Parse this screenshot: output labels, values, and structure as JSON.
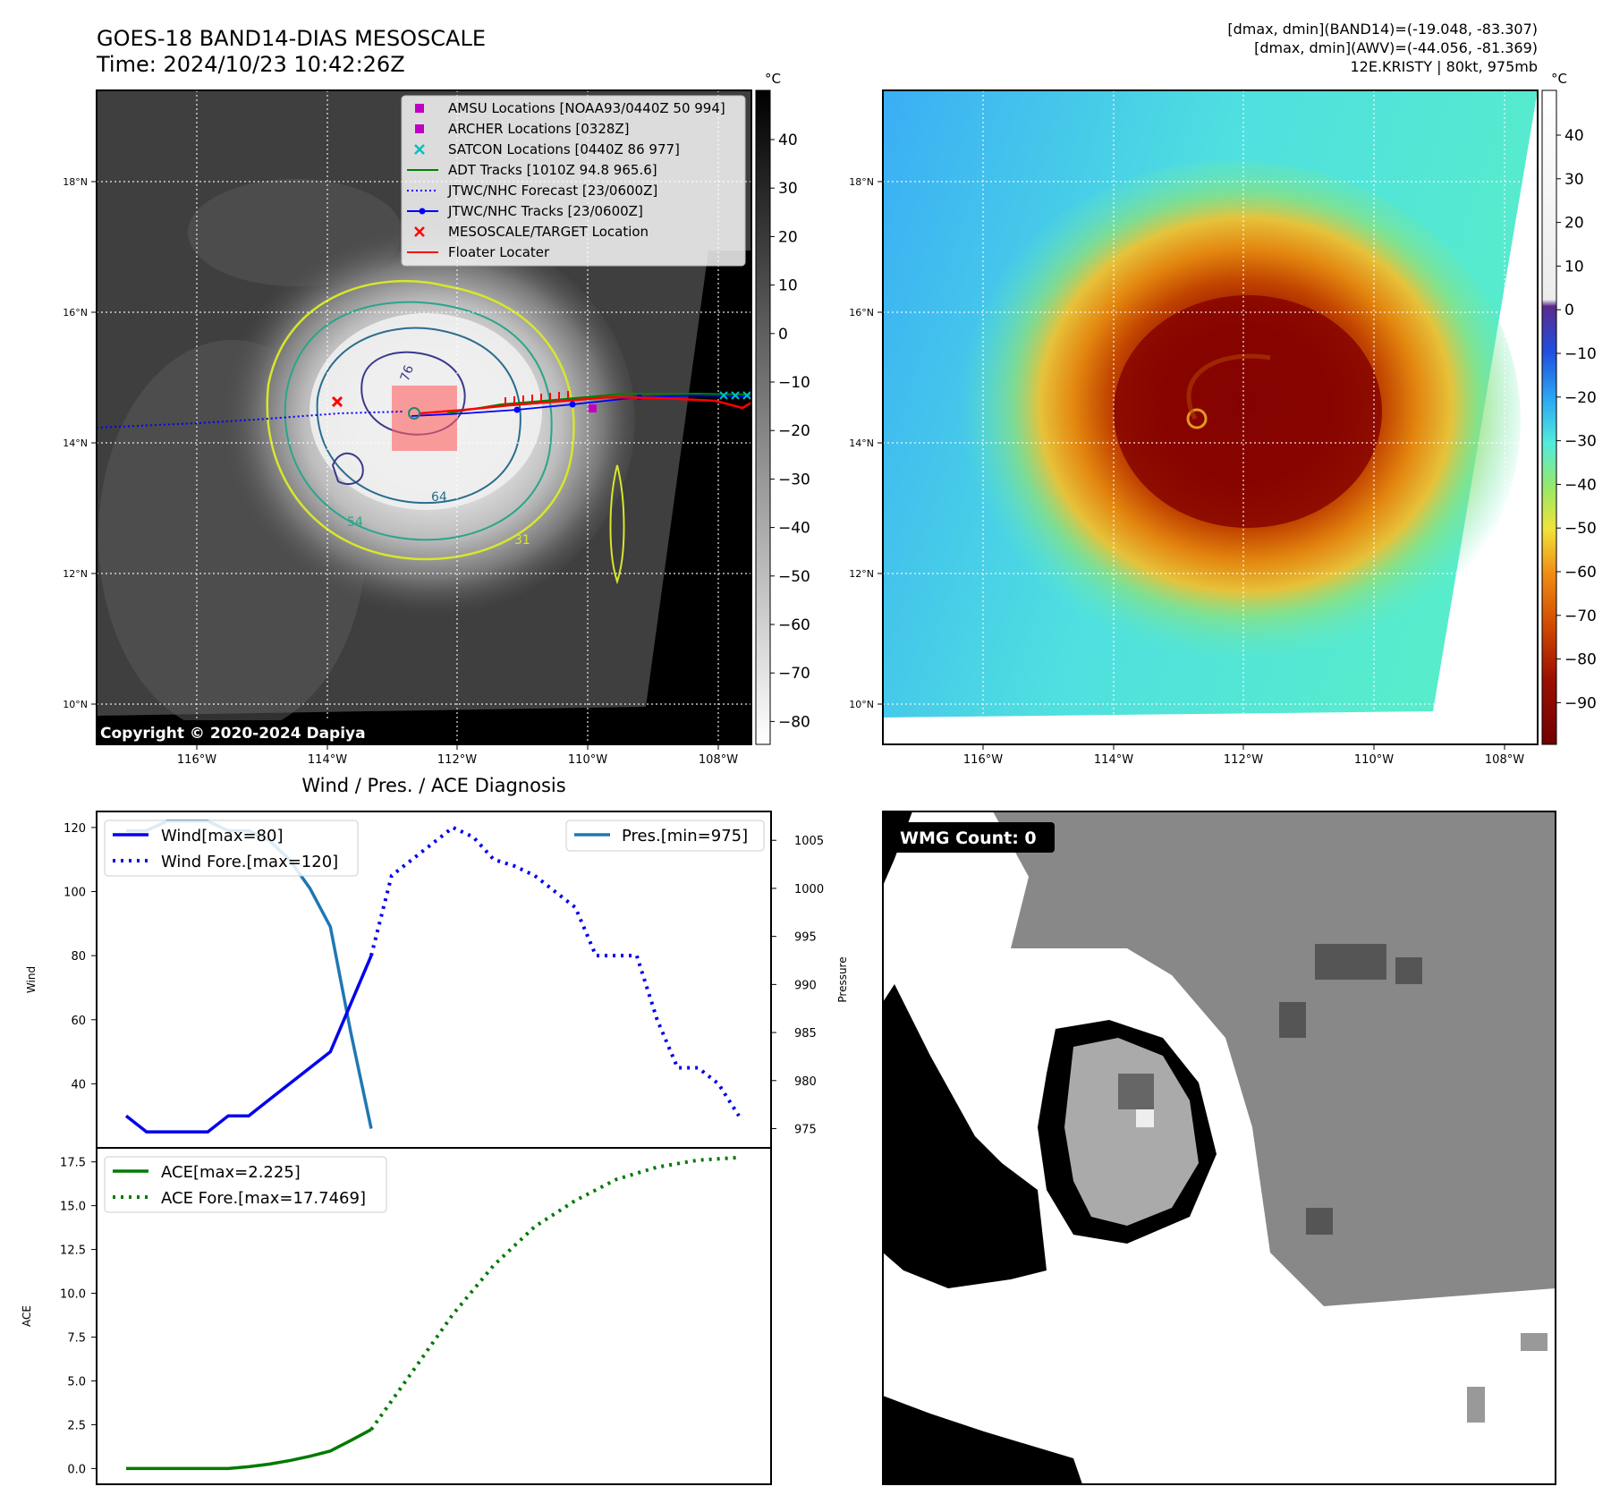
{
  "header": {
    "title_line1": "GOES-18 BAND14-DIAS MESOSCALE",
    "title_line2": "Time: 2024/10/23 10:42:26Z",
    "info_line1": "[dmax, dmin](BAND14)=(-19.048, -83.307)",
    "info_line2": "[dmax, dmin](AWV)=(-44.056, -81.369)",
    "info_line3": "12E.KRISTY | 80kt, 975mb",
    "copyright": "Copyright © 2020-2024 Dapiya"
  },
  "colors": {
    "wind": "#0000ee",
    "pressure": "#1f77b4",
    "ace": "#007a00",
    "amsu": "#c000c0",
    "archer": "#c000c0",
    "satcon": "#00bfbf",
    "adt": "#008000",
    "forecast": "#0000ff",
    "tracks": "#0000ff",
    "meso": "#ff0000",
    "floater": "#ff0000"
  },
  "map": {
    "lon_ticks": [
      "116°W",
      "114°W",
      "112°W",
      "110°W",
      "108°W"
    ],
    "lat_ticks": [
      "18°N",
      "16°N",
      "14°N",
      "12°N",
      "10°N"
    ],
    "cbar_unit": "°C",
    "cbar1_ticks": [
      "40",
      "30",
      "20",
      "10",
      "0",
      "−10",
      "−20",
      "−30",
      "−40",
      "−50",
      "−60",
      "−70",
      "−80"
    ],
    "cbar2_ticks": [
      "40",
      "30",
      "20",
      "10",
      "0",
      "−10",
      "−20",
      "−30",
      "−40",
      "−50",
      "−60",
      "−70",
      "−80",
      "−90"
    ],
    "contour_labels": [
      "76",
      "64",
      "54",
      "31"
    ]
  },
  "legend": [
    {
      "label": "AMSU Locations [NOAA93/0440Z 50 994]",
      "marker": "square",
      "color_key": "amsu"
    },
    {
      "label": "ARCHER Locations [0328Z]",
      "marker": "square",
      "color_key": "archer"
    },
    {
      "label": "SATCON Locations [0440Z 86 977]",
      "marker": "x",
      "color_key": "satcon"
    },
    {
      "label": "ADT Tracks [1010Z 94.8 965.6]",
      "marker": "line",
      "color_key": "adt"
    },
    {
      "label": "JTWC/NHC Forecast [23/0600Z]",
      "marker": "dotted",
      "color_key": "forecast"
    },
    {
      "label": "JTWC/NHC Tracks [23/0600Z]",
      "marker": "line-dot",
      "color_key": "tracks"
    },
    {
      "label": "MESOSCALE/TARGET Location",
      "marker": "x",
      "color_key": "meso"
    },
    {
      "label": "Floater Locater",
      "marker": "line",
      "color_key": "floater"
    }
  ],
  "diag": {
    "title": "Wind / Pres. / ACE Diagnosis",
    "wind_ylabel": "Wind",
    "pres_ylabel": "Pressure",
    "ace_ylabel": "ACE",
    "wind_ticks": [
      "120",
      "100",
      "80",
      "60",
      "40"
    ],
    "pres_ticks": [
      "1005",
      "1000",
      "995",
      "990",
      "985",
      "980",
      "975"
    ],
    "ace_ticks": [
      "17.5",
      "15.0",
      "12.5",
      "10.0",
      "7.5",
      "5.0",
      "2.5",
      "0.0"
    ],
    "legend_wind": "Wind[max=80]",
    "legend_wind_fore": "Wind Fore.[max=120]",
    "legend_pres": "Pres.[min=975]",
    "legend_ace": "ACE[max=2.225]",
    "legend_ace_fore": "ACE Fore.[max=17.7469]"
  },
  "wmg": {
    "label": "WMG Count: 0"
  },
  "chart_data": [
    {
      "type": "line",
      "title": "Wind / Pres. / ACE Diagnosis",
      "x": [
        0,
        1,
        2,
        3,
        4,
        5,
        6,
        7,
        8,
        9,
        10,
        11,
        12
      ],
      "series": [
        {
          "name": "Wind[max=80]",
          "axis": "wind",
          "values": [
            30,
            25,
            25,
            25,
            25,
            30,
            30,
            35,
            40,
            45,
            50,
            65,
            80
          ]
        },
        {
          "name": "Pres.[min=975]",
          "axis": "pressure",
          "values": [
            1006,
            1006,
            1007,
            1007,
            1007,
            1006,
            1006,
            1005,
            1003,
            1000,
            996,
            985,
            975
          ]
        }
      ],
      "forecast": {
        "name": "Wind Fore.[max=120]",
        "x": [
          12,
          13,
          14,
          15,
          16,
          17,
          18,
          19,
          20,
          21,
          22,
          23,
          24,
          25,
          26,
          27,
          28,
          29,
          30
        ],
        "values": [
          80,
          105,
          110,
          115,
          120,
          117,
          110,
          108,
          105,
          100,
          95,
          80,
          80,
          80,
          60,
          45,
          45,
          40,
          30
        ]
      },
      "ylabel": "Wind",
      "ylim": [
        20,
        125
      ],
      "y2label": "Pressure",
      "y2lim": [
        973,
        1008
      ]
    },
    {
      "type": "line",
      "x": [
        0,
        1,
        2,
        3,
        4,
        5,
        6,
        7,
        8,
        9,
        10,
        11,
        12
      ],
      "series": [
        {
          "name": "ACE[max=2.225]",
          "values": [
            0,
            0,
            0,
            0,
            0,
            0,
            0.1,
            0.25,
            0.45,
            0.7,
            1.0,
            1.6,
            2.225
          ]
        }
      ],
      "forecast": {
        "name": "ACE Fore.[max=17.7469]",
        "x": [
          12,
          14,
          16,
          18,
          20,
          22,
          24,
          26,
          28,
          30
        ],
        "values": [
          2.225,
          5.5,
          8.8,
          11.6,
          13.8,
          15.3,
          16.5,
          17.2,
          17.6,
          17.7469
        ]
      },
      "ylabel": "ACE",
      "ylim": [
        -0.9,
        18.3
      ]
    }
  ]
}
